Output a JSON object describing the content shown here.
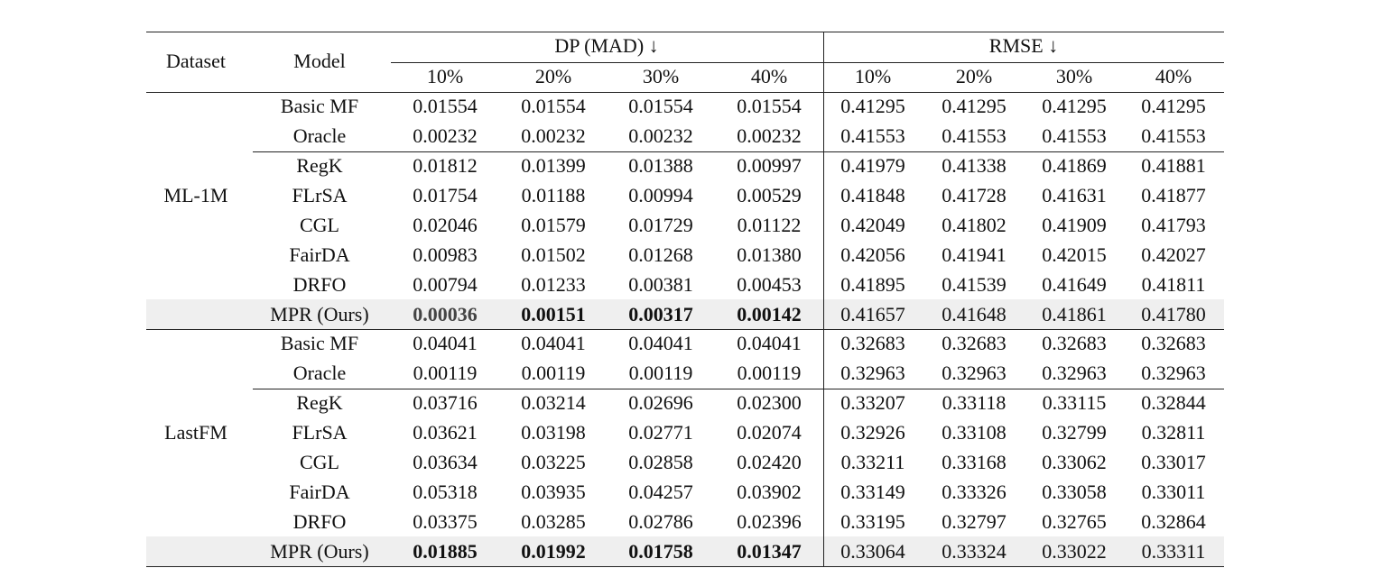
{
  "table": {
    "header": {
      "dataset": "Dataset",
      "model": "Model",
      "groups": [
        "DP (MAD) ↓",
        "RMSE ↓"
      ],
      "subcolumns": [
        "10%",
        "20%",
        "30%",
        "40%",
        "10%",
        "20%",
        "30%",
        "40%"
      ]
    },
    "datasets": [
      {
        "name": "ML-1M",
        "rows": [
          {
            "model": "Basic MF",
            "values": [
              "0.01554",
              "0.01554",
              "0.01554",
              "0.01554",
              "0.41295",
              "0.41295",
              "0.41295",
              "0.41295"
            ]
          },
          {
            "model": "Oracle",
            "values": [
              "0.00232",
              "0.00232",
              "0.00232",
              "0.00232",
              "0.41553",
              "0.41553",
              "0.41553",
              "0.41553"
            ]
          },
          {
            "model": "RegK",
            "values": [
              "0.01812",
              "0.01399",
              "0.01388",
              "0.00997",
              "0.41979",
              "0.41338",
              "0.41869",
              "0.41881"
            ]
          },
          {
            "model": "FLrSA",
            "values": [
              "0.01754",
              "0.01188",
              "0.00994",
              "0.00529",
              "0.41848",
              "0.41728",
              "0.41631",
              "0.41877"
            ]
          },
          {
            "model": "CGL",
            "values": [
              "0.02046",
              "0.01579",
              "0.01729",
              "0.01122",
              "0.42049",
              "0.41802",
              "0.41909",
              "0.41793"
            ]
          },
          {
            "model": "FairDA",
            "values": [
              "0.00983",
              "0.01502",
              "0.01268",
              "0.01380",
              "0.42056",
              "0.41941",
              "0.42015",
              "0.42027"
            ]
          },
          {
            "model": "DRFO",
            "values": [
              "0.00794",
              "0.01233",
              "0.00381",
              "0.00453",
              "0.41895",
              "0.41539",
              "0.41649",
              "0.41811"
            ]
          },
          {
            "model": "MPR (Ours)",
            "values": [
              "0.00036",
              "0.00151",
              "0.00317",
              "0.00142",
              "0.41657",
              "0.41648",
              "0.41861",
              "0.41780"
            ]
          }
        ]
      },
      {
        "name": "LastFM",
        "rows": [
          {
            "model": "Basic MF",
            "values": [
              "0.04041",
              "0.04041",
              "0.04041",
              "0.04041",
              "0.32683",
              "0.32683",
              "0.32683",
              "0.32683"
            ]
          },
          {
            "model": "Oracle",
            "values": [
              "0.00119",
              "0.00119",
              "0.00119",
              "0.00119",
              "0.32963",
              "0.32963",
              "0.32963",
              "0.32963"
            ]
          },
          {
            "model": "RegK",
            "values": [
              "0.03716",
              "0.03214",
              "0.02696",
              "0.02300",
              "0.33207",
              "0.33118",
              "0.33115",
              "0.32844"
            ]
          },
          {
            "model": "FLrSA",
            "values": [
              "0.03621",
              "0.03198",
              "0.02771",
              "0.02074",
              "0.32926",
              "0.33108",
              "0.32799",
              "0.32811"
            ]
          },
          {
            "model": "CGL",
            "values": [
              "0.03634",
              "0.03225",
              "0.02858",
              "0.02420",
              "0.33211",
              "0.33168",
              "0.33062",
              "0.33017"
            ]
          },
          {
            "model": "FairDA",
            "values": [
              "0.05318",
              "0.03935",
              "0.04257",
              "0.03902",
              "0.33149",
              "0.33326",
              "0.33058",
              "0.33011"
            ]
          },
          {
            "model": "DRFO",
            "values": [
              "0.03375",
              "0.03285",
              "0.02786",
              "0.02396",
              "0.33195",
              "0.32797",
              "0.32765",
              "0.32864"
            ]
          },
          {
            "model": "MPR (Ours)",
            "values": [
              "0.01885",
              "0.01992",
              "0.01758",
              "0.01347",
              "0.33064",
              "0.33324",
              "0.33022",
              "0.33311"
            ]
          }
        ]
      }
    ]
  }
}
